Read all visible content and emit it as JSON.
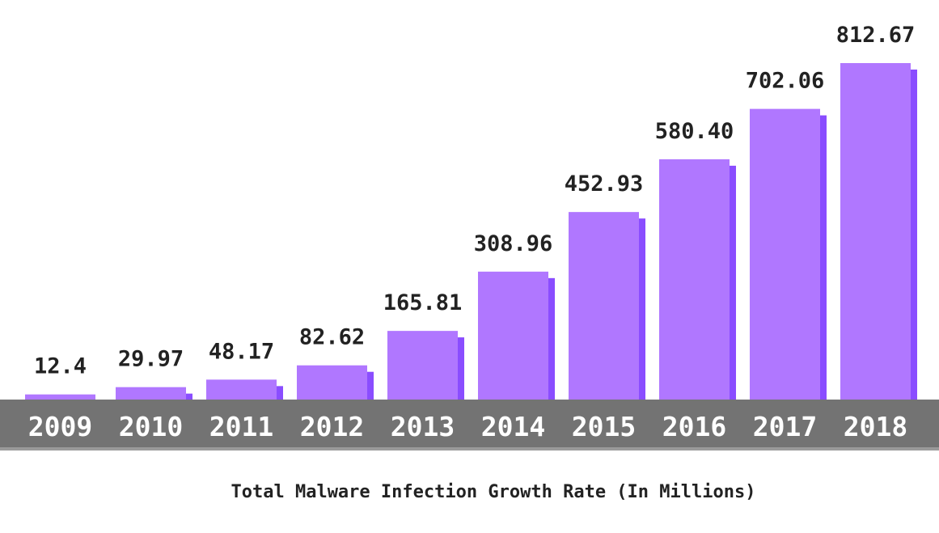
{
  "chart_data": {
    "type": "bar",
    "categories": [
      "2009",
      "2010",
      "2011",
      "2012",
      "2013",
      "2014",
      "2015",
      "2016",
      "2017",
      "2018"
    ],
    "values": [
      12.4,
      29.97,
      48.17,
      82.62,
      165.81,
      308.96,
      452.93,
      580.4,
      702.06,
      812.67
    ],
    "value_labels": [
      "12.4",
      "29.97",
      "48.17",
      "82.62",
      "165.81",
      "308.96",
      "452.93",
      "580.40",
      "702.06",
      "812.67"
    ],
    "caption": "Total Malware Infection Growth Rate (In Millions)",
    "ylim": [
      0,
      812.67
    ],
    "grid": false,
    "legend": "none",
    "colors": {
      "bar_front": "#b077ff",
      "bar_side": "#8a4dff",
      "axis_band": "#737373",
      "axis_band_edge": "#9a9a9a",
      "tick_text": "#ffffff",
      "label_text": "#222222"
    }
  }
}
